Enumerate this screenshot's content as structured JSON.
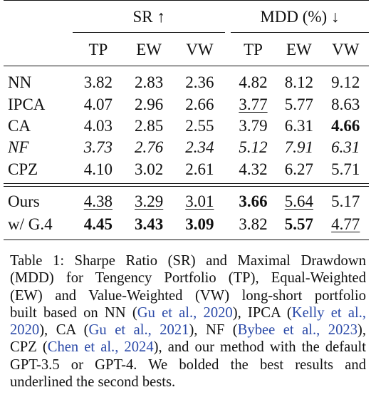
{
  "table": {
    "groups": [
      {
        "label": "SR ↑"
      },
      {
        "label": "MDD (%) ↓"
      }
    ],
    "columns": [
      "TP",
      "EW",
      "VW",
      "TP",
      "EW",
      "VW"
    ],
    "rows": [
      {
        "method": "NN",
        "values": [
          "3.82",
          "2.83",
          "2.36",
          "4.82",
          "8.12",
          "9.12"
        ],
        "bold": [],
        "underline": [],
        "italic": false
      },
      {
        "method": "IPCA",
        "values": [
          "4.07",
          "2.96",
          "2.66",
          "3.77",
          "5.77",
          "8.63"
        ],
        "bold": [],
        "underline": [
          3
        ],
        "italic": false
      },
      {
        "method": "CA",
        "values": [
          "4.03",
          "2.85",
          "2.55",
          "3.79",
          "6.31",
          "4.66"
        ],
        "bold": [
          5
        ],
        "underline": [],
        "italic": false
      },
      {
        "method": "NF",
        "values": [
          "3.73",
          "2.76",
          "2.34",
          "5.12",
          "7.91",
          "6.31"
        ],
        "bold": [],
        "underline": [],
        "italic": true
      },
      {
        "method": "CPZ",
        "values": [
          "4.10",
          "3.02",
          "2.61",
          "4.32",
          "6.27",
          "5.71"
        ],
        "bold": [],
        "underline": [],
        "italic": false
      },
      {
        "method": "Ours",
        "values": [
          "4.38",
          "3.29",
          "3.01",
          "3.66",
          "5.64",
          "5.17"
        ],
        "bold": [
          3
        ],
        "underline": [
          0,
          1,
          2,
          4
        ],
        "italic": false
      },
      {
        "method": "w/ G.4",
        "values": [
          "4.45",
          "3.43",
          "3.09",
          "3.82",
          "5.57",
          "4.77"
        ],
        "bold": [
          0,
          1,
          2,
          4
        ],
        "underline": [
          5
        ],
        "italic": false
      }
    ]
  },
  "caption": {
    "lines": [
      [
        {
          "t": "Table 1: Sharpe Ratio (SR) and Maximal Drawdown"
        }
      ],
      [
        {
          "t": "(MDD) for Tengency Portfolio (TP), Equal-Weighted"
        }
      ],
      [
        {
          "t": "(EW) and Value-Weighted (VW) long-short portfolio"
        }
      ],
      [
        {
          "t": "built based on NN ("
        },
        {
          "t": "Gu et al., 2020",
          "cite": true
        },
        {
          "t": "), IPCA ("
        },
        {
          "t": "Kelly et al.,",
          "cite": true
        }
      ],
      [
        {
          "t": "2020",
          "cite": true
        },
        {
          "t": "), CA ("
        },
        {
          "t": "Gu et al., 2021",
          "cite": true
        },
        {
          "t": "), NF ("
        },
        {
          "t": "Bybee et al., 2023",
          "cite": true
        },
        {
          "t": "),"
        }
      ],
      [
        {
          "t": "CPZ ("
        },
        {
          "t": "Chen et al., 2024",
          "cite": true
        },
        {
          "t": "), and our method with the default"
        }
      ],
      [
        {
          "t": "GPT-3.5 or GPT-4.  We bolded the best results and"
        }
      ],
      [
        {
          "t": "underlined the second bests."
        }
      ]
    ]
  }
}
